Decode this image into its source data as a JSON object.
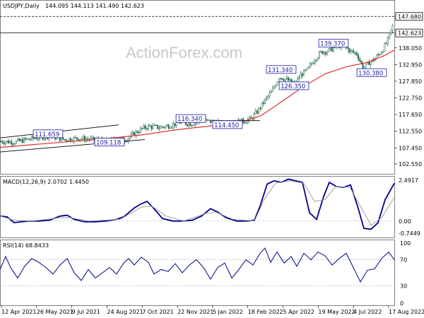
{
  "chart_data": [
    {
      "type": "candlestick",
      "title": "USDJPY,Daily",
      "ohlc_readout": "144.095 144.113 141.490 142.623",
      "ylim": [
        99.5,
        152.5
      ],
      "y_ticks": [
        "147.680",
        "142.623",
        "138.050",
        "132.950",
        "127.850",
        "122.750",
        "117.650",
        "112.550",
        "107.450",
        "102.550"
      ],
      "price_tags": [
        "147.680",
        "142.623"
      ],
      "x_ticks": [
        "12 Apr 2021",
        "26 May 2021",
        "9 Jul 2021",
        "24 Aug 2021",
        "7 Oct 2021",
        "22 Nov 2021",
        "5 Jan 2022",
        "18 Feb 2022",
        "5 Apr 2022",
        "19 May 2022",
        "4 Jul 2022",
        "17 Aug 2022"
      ],
      "price_path": [
        [
          0,
          109.5
        ],
        [
          20,
          109.2
        ],
        [
          45,
          110.3
        ],
        [
          70,
          111.2
        ],
        [
          90,
          110.0
        ],
        [
          110,
          110.4
        ],
        [
          130,
          110.0
        ],
        [
          150,
          109.6
        ],
        [
          165,
          109.8
        ],
        [
          180,
          110.2
        ],
        [
          190,
          111.8
        ],
        [
          200,
          113.2
        ],
        [
          210,
          114.0
        ],
        [
          225,
          113.7
        ],
        [
          240,
          114.3
        ],
        [
          255,
          115.3
        ],
        [
          270,
          114.8
        ],
        [
          285,
          115.8
        ],
        [
          300,
          115.5
        ],
        [
          315,
          114.6
        ],
        [
          330,
          115.4
        ],
        [
          345,
          115.6
        ],
        [
          355,
          116.3
        ],
        [
          365,
          118.8
        ],
        [
          375,
          122.0
        ],
        [
          385,
          124.8
        ],
        [
          395,
          129.2
        ],
        [
          405,
          128.4
        ],
        [
          418,
          127.0
        ],
        [
          425,
          129.7
        ],
        [
          435,
          131.3
        ],
        [
          445,
          134.6
        ],
        [
          455,
          136.8
        ],
        [
          465,
          137.2
        ],
        [
          475,
          138.3
        ],
        [
          485,
          139.1
        ],
        [
          495,
          137.1
        ],
        [
          505,
          136.2
        ],
        [
          515,
          131.5
        ],
        [
          522,
          133.6
        ],
        [
          530,
          134.6
        ],
        [
          540,
          137.0
        ],
        [
          548,
          139.9
        ],
        [
          552,
          142.6
        ],
        [
          556,
          144.9
        ],
        [
          558,
          142.6
        ]
      ],
      "ma_path": [
        [
          0,
          107.6
        ],
        [
          50,
          108.5
        ],
        [
          100,
          109.4
        ],
        [
          150,
          110.3
        ],
        [
          200,
          111.4
        ],
        [
          250,
          113.0
        ],
        [
          300,
          114.2
        ],
        [
          340,
          115.2
        ],
        [
          370,
          117.4
        ],
        [
          400,
          121.8
        ],
        [
          430,
          126.3
        ],
        [
          460,
          130.1
        ],
        [
          490,
          132.3
        ],
        [
          520,
          133.6
        ],
        [
          545,
          135.8
        ],
        [
          558,
          137.4
        ]
      ],
      "channel_lines": [
        {
          "from": [
            0,
            110.5
          ],
          "to": [
            168,
            114.5
          ]
        },
        {
          "from": [
            0,
            106.2
          ],
          "to": [
            205,
            110.0
          ]
        }
      ],
      "breakout_line": {
        "from": [
          300,
          115.8
        ],
        "to": [
          368,
          115.8
        ]
      },
      "annotations": [
        {
          "label": "139.370",
          "x": 472,
          "y": 139.37
        },
        {
          "label": "131.340",
          "x": 398,
          "y": 131.34
        },
        {
          "label": "126.350",
          "x": 416,
          "y": 126.35
        },
        {
          "label": "130.380",
          "x": 526,
          "y": 130.38
        },
        {
          "label": "116.340",
          "x": 270,
          "y": 116.34
        },
        {
          "label": "111.659",
          "x": 68,
          "y": 111.66
        },
        {
          "label": "114.450",
          "x": 322,
          "y": 114.45
        },
        {
          "label": "109.118",
          "x": 155,
          "y": 109.12
        }
      ],
      "reference_levels": [
        147.68,
        142.623
      ]
    },
    {
      "type": "line",
      "title": "MACD(12,26,9) 2.0702 1.4450",
      "ylim": [
        -1.0,
        2.7
      ],
      "y_ticks": [
        "2.4917",
        "0.00",
        "-0.7449"
      ],
      "series": [
        {
          "kind": "macd",
          "color": "#00008b",
          "values": [
            [
              0,
              0.3
            ],
            [
              10,
              0.25
            ],
            [
              20,
              -0.1
            ],
            [
              30,
              -0.05
            ],
            [
              40,
              0.0
            ],
            [
              55,
              0.0
            ],
            [
              70,
              0.05
            ],
            [
              85,
              0.3
            ],
            [
              95,
              0.35
            ],
            [
              105,
              0.1
            ],
            [
              120,
              -0.05
            ],
            [
              135,
              -0.05
            ],
            [
              150,
              0.0
            ],
            [
              165,
              0.1
            ],
            [
              175,
              0.25
            ],
            [
              190,
              0.8
            ],
            [
              200,
              1.05
            ],
            [
              208,
              1.2
            ],
            [
              218,
              0.75
            ],
            [
              230,
              0.15
            ],
            [
              245,
              0.0
            ],
            [
              258,
              0.0
            ],
            [
              272,
              0.05
            ],
            [
              285,
              0.3
            ],
            [
              298,
              0.75
            ],
            [
              308,
              0.55
            ],
            [
              320,
              0.2
            ],
            [
              335,
              0.0
            ],
            [
              350,
              0.0
            ],
            [
              360,
              0.05
            ],
            [
              368,
              0.9
            ],
            [
              378,
              2.25
            ],
            [
              388,
              2.45
            ],
            [
              398,
              2.35
            ],
            [
              408,
              2.55
            ],
            [
              418,
              2.45
            ],
            [
              428,
              2.35
            ],
            [
              438,
              0.5
            ],
            [
              448,
              0.1
            ],
            [
              458,
              1.5
            ],
            [
              466,
              2.35
            ],
            [
              476,
              2.1
            ],
            [
              486,
              2.05
            ],
            [
              496,
              2.2
            ],
            [
              506,
              0.9
            ],
            [
              515,
              -0.45
            ],
            [
              525,
              -0.5
            ],
            [
              535,
              -0.1
            ],
            [
              545,
              1.3
            ],
            [
              558,
              2.3
            ]
          ]
        },
        {
          "kind": "signal",
          "color": "#a0a0a0",
          "values": [
            [
              0,
              0.3
            ],
            [
              20,
              0.05
            ],
            [
              45,
              0.0
            ],
            [
              85,
              0.2
            ],
            [
              100,
              0.2
            ],
            [
              125,
              0.0
            ],
            [
              170,
              0.1
            ],
            [
              200,
              0.85
            ],
            [
              215,
              0.9
            ],
            [
              235,
              0.3
            ],
            [
              260,
              0.0
            ],
            [
              290,
              0.45
            ],
            [
              305,
              0.55
            ],
            [
              330,
              0.1
            ],
            [
              360,
              0.0
            ],
            [
              375,
              1.4
            ],
            [
              390,
              2.3
            ],
            [
              410,
              2.45
            ],
            [
              430,
              2.3
            ],
            [
              445,
              1.2
            ],
            [
              460,
              1.3
            ],
            [
              475,
              2.1
            ],
            [
              495,
              2.05
            ],
            [
              510,
              0.9
            ],
            [
              525,
              -0.25
            ],
            [
              540,
              0.2
            ],
            [
              558,
              1.45
            ]
          ]
        }
      ]
    },
    {
      "type": "line",
      "title": "RSI(14) 68.8433",
      "ylim": [
        0,
        100
      ],
      "y_ticks": [
        "100",
        "70",
        "30",
        "0"
      ],
      "series": [
        {
          "kind": "rsi",
          "color": "#00008b",
          "values": [
            [
              0,
              55
            ],
            [
              8,
              75
            ],
            [
              15,
              58
            ],
            [
              25,
              42
            ],
            [
              35,
              60
            ],
            [
              45,
              72
            ],
            [
              55,
              66
            ],
            [
              65,
              58
            ],
            [
              75,
              48
            ],
            [
              85,
              62
            ],
            [
              95,
              72
            ],
            [
              105,
              50
            ],
            [
              115,
              38
            ],
            [
              125,
              55
            ],
            [
              135,
              42
            ],
            [
              145,
              50
            ],
            [
              155,
              58
            ],
            [
              165,
              48
            ],
            [
              175,
              65
            ],
            [
              182,
              72
            ],
            [
              190,
              62
            ],
            [
              200,
              74
            ],
            [
              210,
              66
            ],
            [
              218,
              48
            ],
            [
              228,
              55
            ],
            [
              238,
              52
            ],
            [
              248,
              64
            ],
            [
              258,
              50
            ],
            [
              268,
              62
            ],
            [
              278,
              70
            ],
            [
              288,
              58
            ],
            [
              298,
              40
            ],
            [
              308,
              58
            ],
            [
              318,
              65
            ],
            [
              328,
              42
            ],
            [
              338,
              55
            ],
            [
              348,
              70
            ],
            [
              358,
              62
            ],
            [
              368,
              80
            ],
            [
              375,
              88
            ],
            [
              383,
              66
            ],
            [
              392,
              82
            ],
            [
              402,
              65
            ],
            [
              412,
              75
            ],
            [
              420,
              60
            ],
            [
              430,
              80
            ],
            [
              440,
              70
            ],
            [
              450,
              82
            ],
            [
              460,
              76
            ],
            [
              470,
              62
            ],
            [
              480,
              72
            ],
            [
              490,
              80
            ],
            [
              500,
              58
            ],
            [
              510,
              36
            ],
            [
              520,
              54
            ],
            [
              530,
              56
            ],
            [
              540,
              72
            ],
            [
              550,
              82
            ],
            [
              558,
              70
            ]
          ]
        }
      ]
    }
  ],
  "watermark": "ActionForex.com",
  "colors": {
    "candle": "#2e6e52",
    "ma": "#e03030",
    "trend": "#000000",
    "annotation": "#1a1aa0",
    "macd": "#00008b",
    "signal": "#a0a0a0",
    "rsi": "#00008b",
    "level": "#000000"
  }
}
